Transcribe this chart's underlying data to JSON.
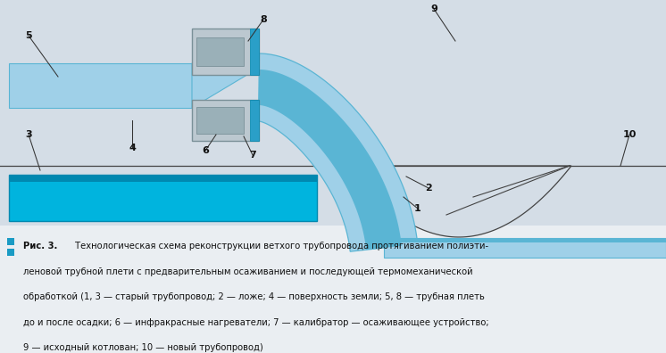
{
  "fig_w": 7.46,
  "fig_h": 3.96,
  "dpi": 100,
  "bg_diagram": "#d4dde6",
  "bg_caption": "#eaeef2",
  "pipe_light": "#9fd0e8",
  "pipe_mid": "#5ab5d4",
  "pipe_bright": "#00b4de",
  "pipe_dark": "#0088b0",
  "pipe_darkest": "#006080",
  "ground_col": "#444444",
  "device_fill": "#bcc8d0",
  "device_border": "#7a9098",
  "device_inner": "#9ab0b8",
  "device_blue": "#2a9fc8",
  "caption_bar": "#1a9bc4",
  "text_col": "#111111",
  "caption_bold": "Рис. 3.",
  "caption_rest": " Технологическая схема реконструкции ветхого трубопровода протягиванием полиэти-\nленовой трубной плети с предварительным осаживанием и последующей термомеханической\nобработкой (1, 3 — старый трубопровод; 2 — ложе; 4 — поверхность земли; 5, 8 — трубная плеть\nдо и после осадки; 6 — инфракрасные нагреватели; 7 — калибратор — осаживающее устройство;\n9 — исходный котлован; 10 — новый трубопровод)"
}
